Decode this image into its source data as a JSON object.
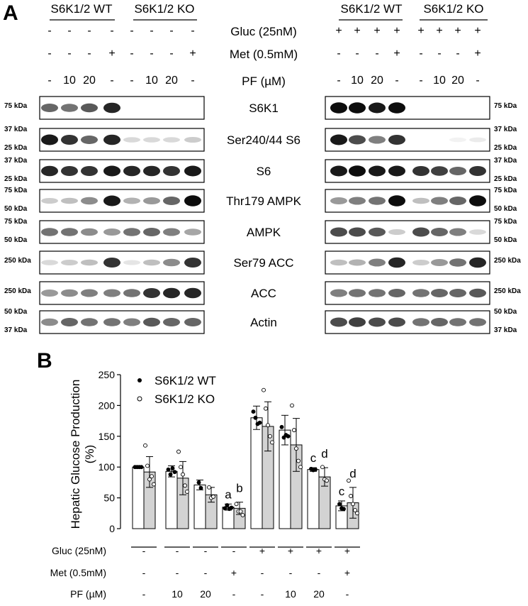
{
  "panel_a": {
    "letter": "A",
    "left_groups": [
      "S6K1/2 WT",
      "S6K1/2 KO"
    ],
    "right_groups": [
      "S6K1/2 WT",
      "S6K1/2 KO"
    ],
    "conditions": [
      {
        "label": "Gluc (25nM)",
        "left": [
          "-",
          "-",
          "-",
          "-",
          "-",
          "-",
          "-",
          "-"
        ],
        "right": [
          "+",
          "+",
          "+",
          "+",
          "+",
          "+",
          "+",
          "+"
        ]
      },
      {
        "label": "Met (0.5mM)",
        "left": [
          "-",
          "-",
          "-",
          "+",
          "-",
          "-",
          "-",
          "+"
        ],
        "right": [
          "-",
          "-",
          "-",
          "+",
          "-",
          "-",
          "-",
          "+"
        ]
      },
      {
        "label": "PF (µM)",
        "left": [
          "-",
          "10",
          "20",
          "-",
          "-",
          "10",
          "20",
          "-"
        ],
        "right": [
          "-",
          "10",
          "20",
          "-",
          "-",
          "10",
          "20",
          "-"
        ]
      }
    ],
    "blots": [
      {
        "label": "S6K1",
        "left_markers": [
          "75 kDa"
        ],
        "right_markers": [
          "75 kDa"
        ]
      },
      {
        "label": "Ser240/44 S6",
        "left_markers": [
          "37 kDa",
          "25 kDa"
        ],
        "right_markers": [
          "37 kDa",
          "25 kDa"
        ]
      },
      {
        "label": "S6",
        "left_markers": [
          "37 kDa",
          "25 kDa"
        ],
        "right_markers": [
          "37 kDa",
          "25 kDa"
        ]
      },
      {
        "label": "Thr179 AMPK",
        "left_markers": [
          "75 kDa",
          "50 kDa"
        ],
        "right_markers": [
          "75 kDa",
          "50 kDa"
        ]
      },
      {
        "label": "AMPK",
        "left_markers": [
          "75 kDa",
          "50 kDa"
        ],
        "right_markers": [
          "75 kDa",
          "50 kDa"
        ]
      },
      {
        "label": "Ser79 ACC",
        "left_markers": [
          "250 kDa"
        ],
        "right_markers": [
          "250 kDa"
        ]
      },
      {
        "label": "ACC",
        "left_markers": [
          "250 kDa"
        ],
        "right_markers": [
          "250 kDa"
        ]
      },
      {
        "label": "Actin",
        "left_markers": [
          "50 kDa",
          "37 kDa"
        ],
        "right_markers": [
          "50 kDa",
          "37 kDa"
        ]
      }
    ]
  },
  "panel_b": {
    "letter": "B",
    "ylabel": [
      "Hepatic Glucose Production",
      "(%)"
    ],
    "legend": [
      {
        "symbol": "•",
        "label": "S6K1/2 WT"
      },
      {
        "symbol": "○",
        "label": "S6K1/2 KO"
      }
    ],
    "conditions": [
      {
        "label": "Gluc (25nM)",
        "values": [
          "-",
          "-",
          "-",
          "-",
          "+",
          "+",
          "+",
          "+"
        ]
      },
      {
        "label": "Met (0.5mM)",
        "values": [
          "-",
          "-",
          "-",
          "+",
          "-",
          "-",
          "-",
          "+"
        ]
      },
      {
        "label": "PF (µM)",
        "values": [
          "-",
          "10",
          "20",
          "-",
          "-",
          "10",
          "20",
          "-"
        ]
      }
    ],
    "colors": {
      "wt_bar": "#ffffff",
      "ko_bar": "#d3d3d3",
      "stroke": "#000000"
    }
  },
  "chart_data": {
    "type": "bar",
    "categories": [
      "-/-/-",
      "-/-/10",
      "-/-/20",
      "-/+/-",
      "+/-/-",
      "+/-/10",
      "+/-/20",
      "+/+/-"
    ],
    "series": [
      {
        "name": "S6K1/2 WT",
        "values": [
          100,
          93,
          71,
          35,
          180,
          160,
          96,
          37
        ],
        "sd": [
          1,
          9,
          8,
          5,
          19,
          24,
          3,
          8
        ]
      },
      {
        "name": "S6K1/2 KO",
        "values": [
          92,
          82,
          55,
          33,
          166,
          136,
          84,
          42
        ],
        "sd": [
          25,
          27,
          12,
          10,
          40,
          43,
          15,
          25
        ]
      }
    ],
    "annotations": [
      {
        "category": 3,
        "series": "S6K1/2 WT",
        "text": "a"
      },
      {
        "category": 3,
        "series": "S6K1/2 KO",
        "text": "b"
      },
      {
        "category": 6,
        "series": "S6K1/2 WT",
        "text": "c"
      },
      {
        "category": 6,
        "series": "S6K1/2 KO",
        "text": "d"
      },
      {
        "category": 7,
        "series": "S6K1/2 WT",
        "text": "c"
      },
      {
        "category": 7,
        "series": "S6K1/2 KO",
        "text": "d"
      }
    ],
    "ylabel": "Hepatic Glucose Production (%)",
    "ylim": [
      0,
      250
    ],
    "yticks": [
      0,
      50,
      100,
      150,
      200,
      250
    ],
    "legend_position": "top-left",
    "grid": false
  }
}
